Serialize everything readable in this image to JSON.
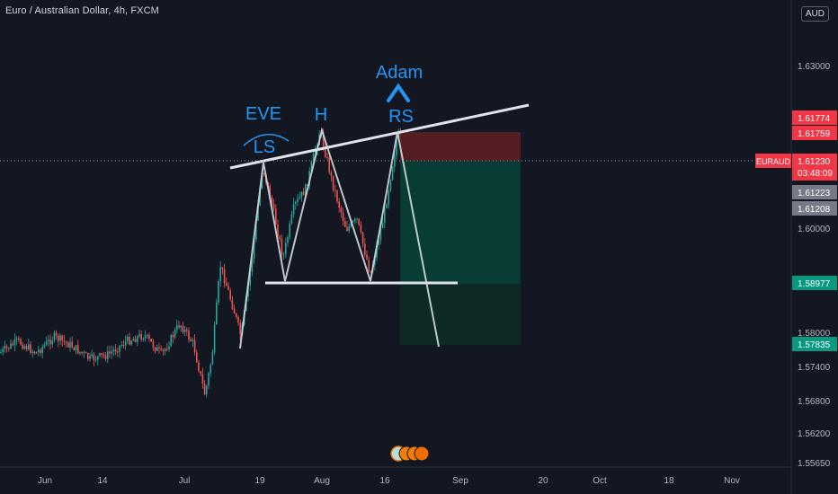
{
  "header": {
    "symbol_title": "Euro / Australian Dollar, 4h, FXCM",
    "currency_badge": "AUD"
  },
  "colors": {
    "background": "#131722",
    "up": "#26a69a",
    "down": "#ef5350",
    "annotation_blue": "#2196f3",
    "pattern_line": "#e0e3eb",
    "stop_zone": "#5c1f24",
    "target_zone": "#073f38",
    "label_red": "#f23645",
    "label_green": "#089981",
    "label_gray": "#787b86"
  },
  "chart_data": {
    "type": "candlestick",
    "title": "Euro / Australian Dollar, 4h, FXCM",
    "y_axis": {
      "ticks": [
        "1.63000",
        "1.60000",
        "1.58000",
        "1.57400",
        "1.56800",
        "1.56200",
        "1.55650"
      ],
      "ylim": [
        1.5565,
        1.6325
      ]
    },
    "x_axis": {
      "ticks": [
        "Jun",
        "14",
        "Jul",
        "19",
        "Aug",
        "16",
        "Sep",
        "20",
        "Oct",
        "18",
        "Nov"
      ]
    },
    "price_labels": [
      {
        "value": "1.61774",
        "kind": "red"
      },
      {
        "value": "1.61759",
        "kind": "red"
      },
      {
        "symbol": "EURAUD",
        "value": "1.61230",
        "countdown": "03:48:09",
        "kind": "red"
      },
      {
        "value": "1.61223",
        "kind": "gray"
      },
      {
        "value": "1.61208",
        "kind": "gray"
      },
      {
        "value": "1.58977",
        "kind": "green"
      },
      {
        "value": "1.57835",
        "kind": "green"
      }
    ],
    "annotations": [
      "EVE",
      "LS",
      "H",
      "Adam",
      "RS"
    ],
    "pattern": "Inverse head-and-shoulders style (Eve & Adam) with neckline and short position",
    "position": {
      "entry": 1.6123,
      "stop": 1.6176,
      "target": 1.57835,
      "intermediate_target": 1.58977
    }
  }
}
